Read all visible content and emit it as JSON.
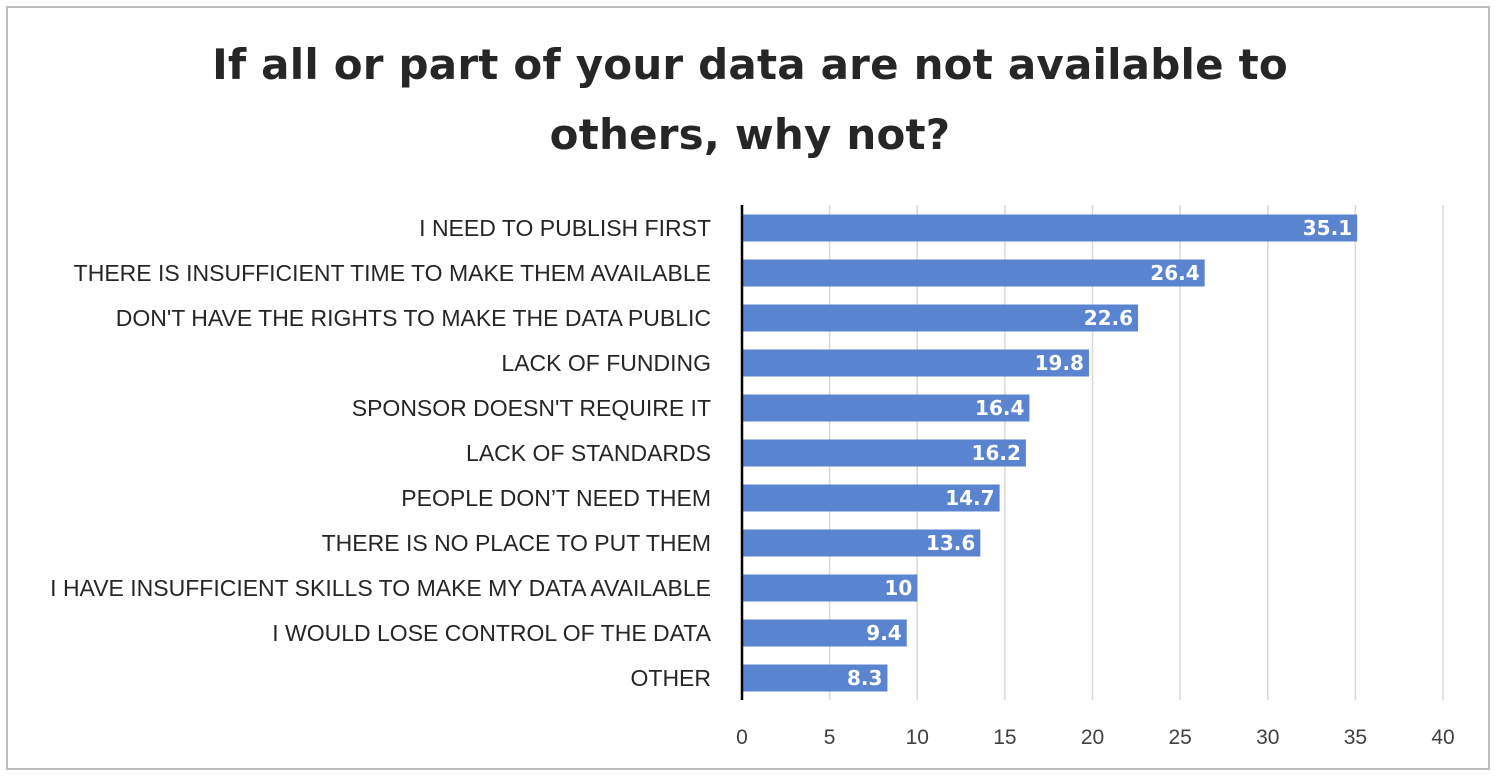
{
  "chart_data": {
    "type": "bar",
    "orientation": "horizontal",
    "title_lines": [
      "If all or part of your data are not available to",
      "others, why not?"
    ],
    "categories": [
      "I NEED TO PUBLISH FIRST",
      "THERE IS INSUFFICIENT TIME TO MAKE THEM AVAILABLE",
      "DON'T HAVE THE RIGHTS TO MAKE THE DATA PUBLIC",
      "LACK OF FUNDING",
      "SPONSOR DOESN'T REQUIRE IT",
      "LACK OF STANDARDS",
      "PEOPLE DON’T NEED THEM",
      "THERE IS NO PLACE TO PUT THEM",
      "I HAVE INSUFFICIENT SKILLS TO MAKE MY DATA AVAILABLE",
      "I WOULD LOSE CONTROL OF THE DATA",
      "OTHER"
    ],
    "values": [
      35.1,
      26.4,
      22.6,
      19.8,
      16.4,
      16.2,
      14.7,
      13.6,
      10,
      9.4,
      8.3
    ],
    "data_labels": [
      "35.1",
      "26.4",
      "22.6",
      "19.8",
      "16.4",
      "16.2",
      "14.7",
      "13.6",
      "10",
      "9.4",
      "8.3"
    ],
    "xlim": [
      0,
      40
    ],
    "xticks": [
      "0",
      "5",
      "10",
      "15",
      "20",
      "25",
      "30",
      "35",
      "40"
    ],
    "grid": "vertical",
    "legend": "none",
    "colors": {
      "bar": "#5b84d0",
      "grid": "#d9d9d9",
      "axis": "#000000"
    }
  }
}
